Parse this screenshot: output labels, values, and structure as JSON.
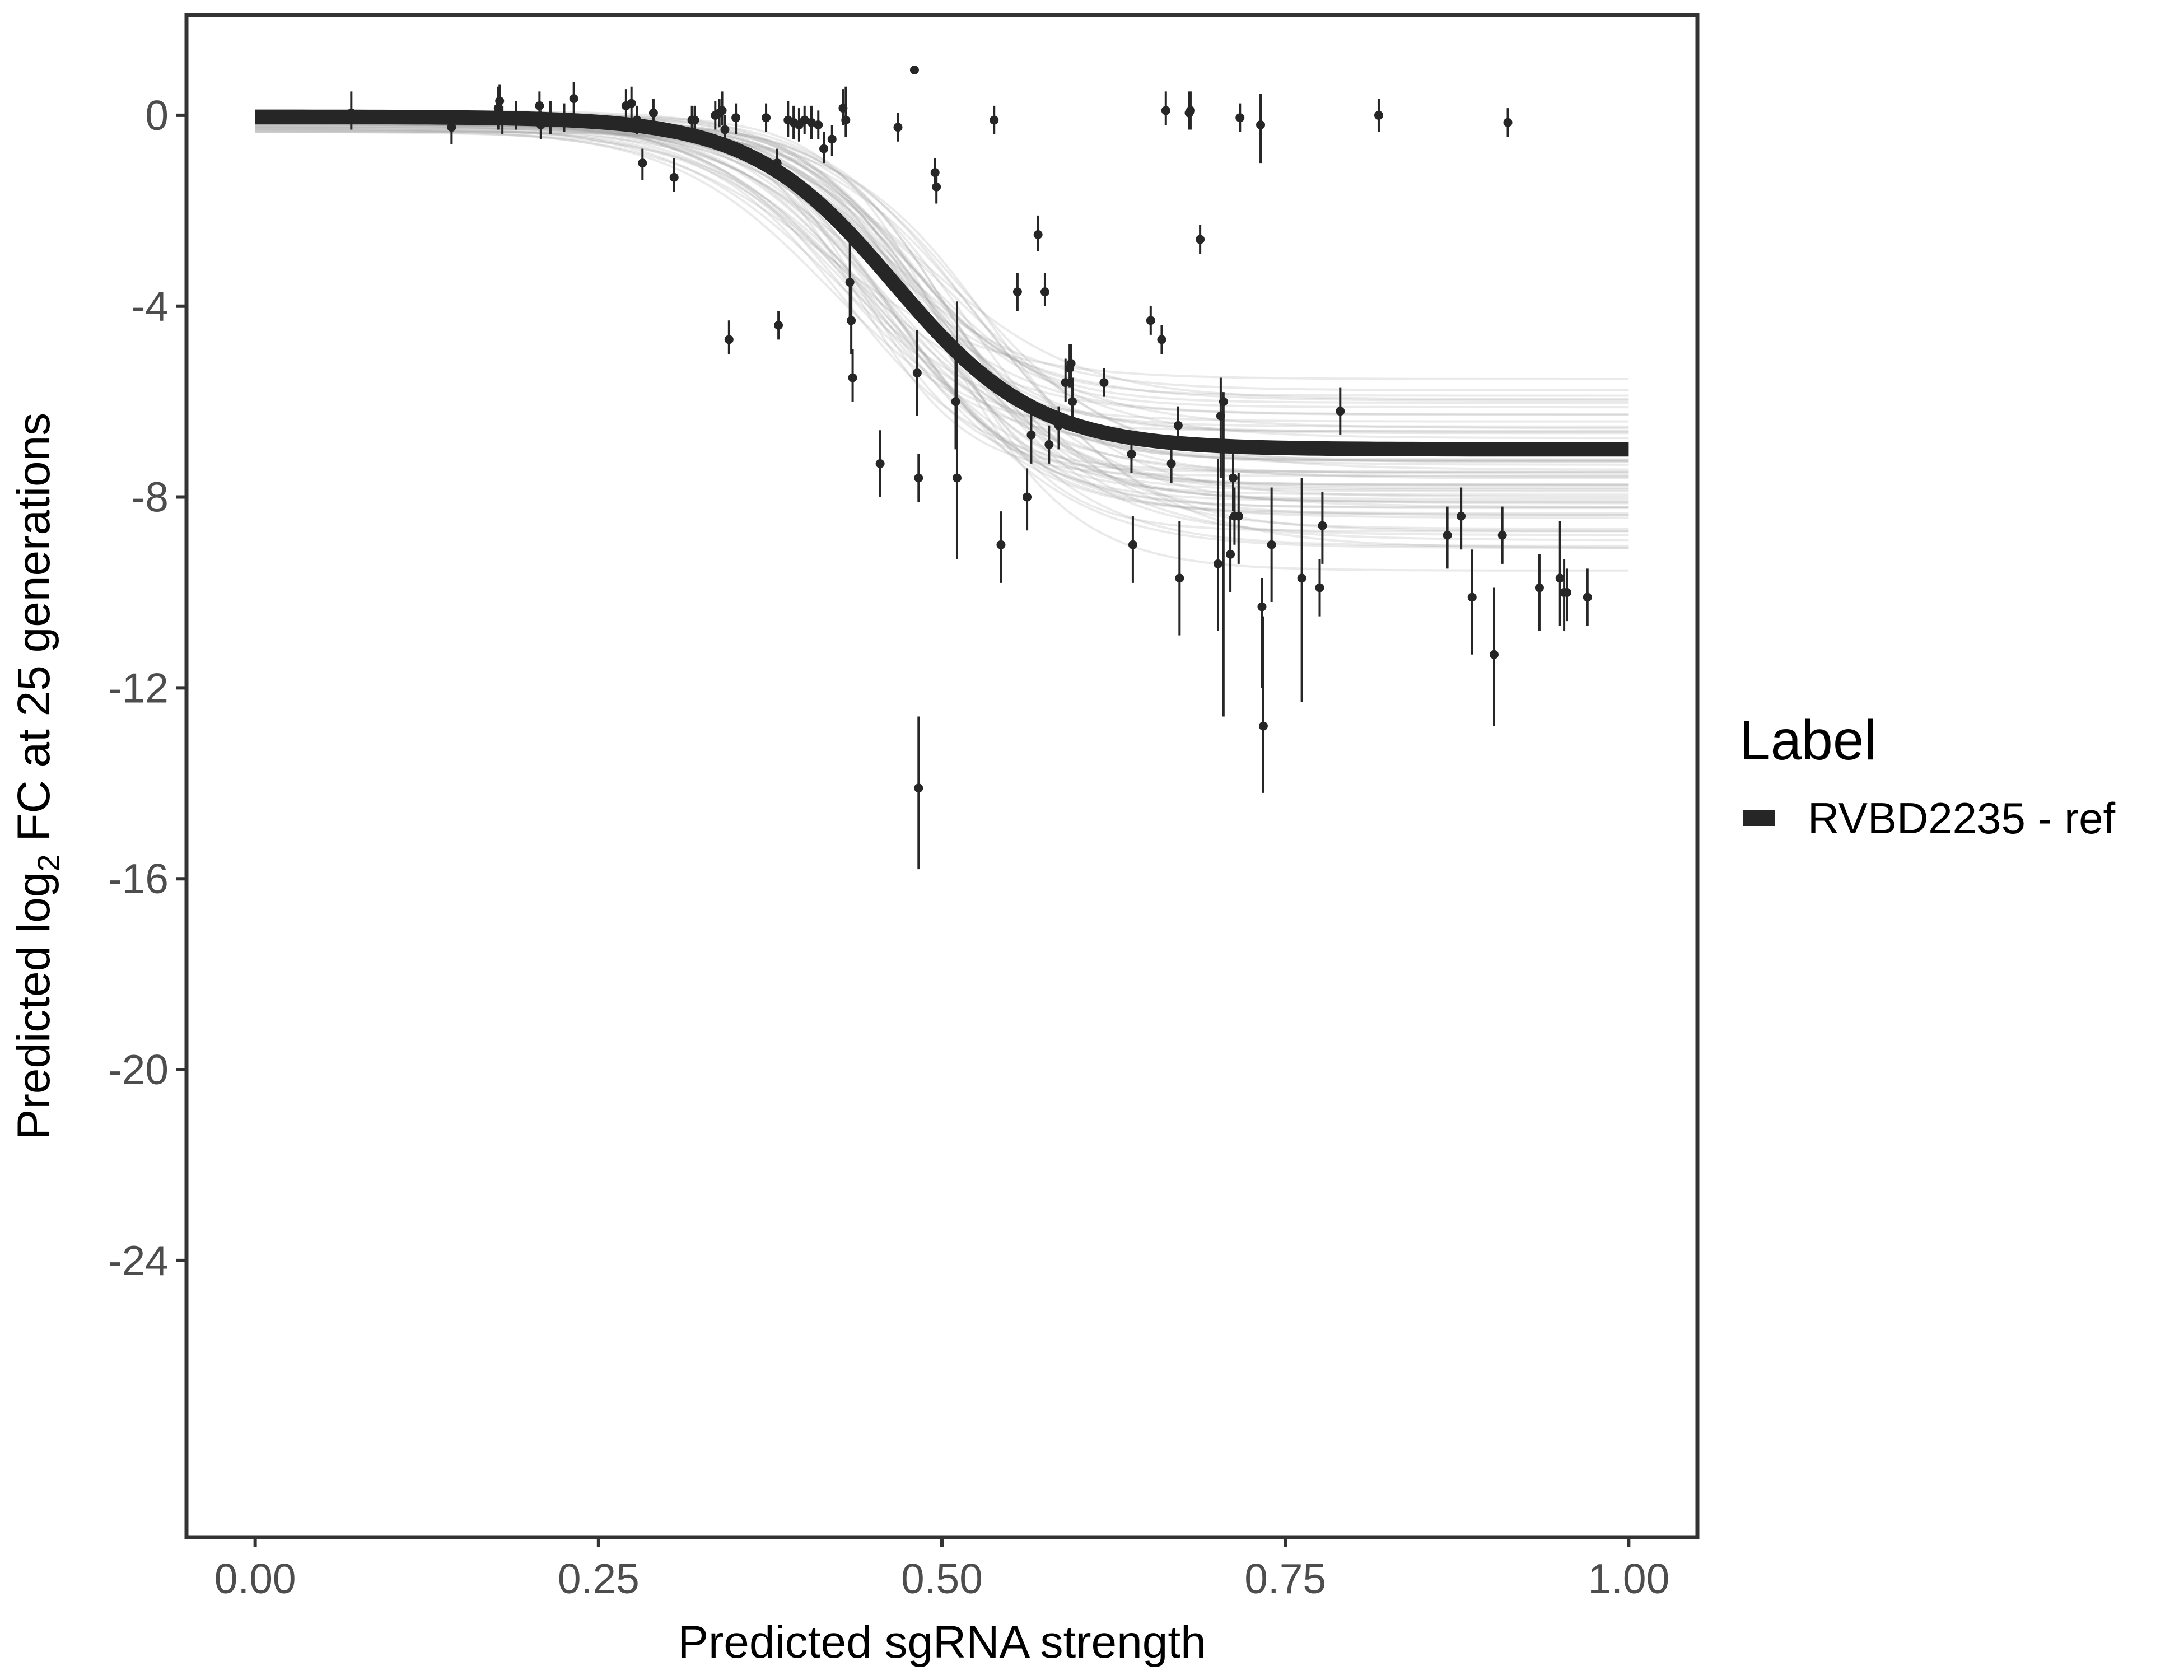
{
  "chart_data": {
    "type": "scatter",
    "xlabel": "Predicted sgRNA strength",
    "ylabel_parts": [
      "Predicted  log",
      "2",
      " FC at 25 generations"
    ],
    "xlim": [
      -0.05,
      1.05
    ],
    "ylim": [
      -29.8,
      2.1
    ],
    "x_ticks": [
      0.0,
      0.25,
      0.5,
      0.75,
      1.0
    ],
    "x_tick_labels": [
      "0.00",
      "0.25",
      "0.50",
      "0.75",
      "1.00"
    ],
    "y_ticks": [
      0,
      -4,
      -8,
      -12,
      -16,
      -20,
      -24
    ],
    "y_tick_labels": [
      "0",
      "-4",
      "-8",
      "-12",
      "-16",
      "-20",
      "-24"
    ],
    "grid": false,
    "legend": {
      "title": "Label",
      "position": "right",
      "entries": [
        {
          "name": "RVBD2235 - ref",
          "color": "#262626"
        }
      ]
    },
    "fit_curve": {
      "name": "RVBD2235 - ref",
      "color": "#262626",
      "model": "logistic",
      "upper": -0.03,
      "lower": -7.0,
      "midpoint": 0.465,
      "scale": 0.052
    },
    "posterior_band": {
      "color": "#9e9e9e",
      "draws": 60,
      "upper_range": [
        -0.35,
        0.1
      ],
      "lower_range": [
        -9.6,
        -5.3
      ],
      "midpoint_range": [
        0.41,
        0.54
      ],
      "scale_range": [
        0.04,
        0.065
      ]
    },
    "points": [
      {
        "x": 0.07,
        "y": 0.05,
        "lo": -0.3,
        "hi": 0.5
      },
      {
        "x": 0.143,
        "y": -0.25,
        "lo": -0.6,
        "hi": 0.1
      },
      {
        "x": 0.177,
        "y": 0.15,
        "lo": -0.3,
        "hi": 0.6
      },
      {
        "x": 0.178,
        "y": 0.3,
        "lo": -0.1,
        "hi": 0.65
      },
      {
        "x": 0.18,
        "y": -0.1,
        "lo": -0.4,
        "hi": 0.2
      },
      {
        "x": 0.19,
        "y": 0.0,
        "lo": -0.3,
        "hi": 0.3
      },
      {
        "x": 0.207,
        "y": 0.2,
        "lo": -0.1,
        "hi": 0.5
      },
      {
        "x": 0.208,
        "y": -0.2,
        "lo": -0.5,
        "hi": 0.1
      },
      {
        "x": 0.215,
        "y": -0.05,
        "lo": -0.4,
        "hi": 0.3
      },
      {
        "x": 0.225,
        "y": -0.05,
        "lo": -0.35,
        "hi": 0.25
      },
      {
        "x": 0.232,
        "y": 0.35,
        "lo": 0.0,
        "hi": 0.7
      },
      {
        "x": 0.27,
        "y": 0.2,
        "lo": -0.1,
        "hi": 0.55
      },
      {
        "x": 0.274,
        "y": 0.25,
        "lo": -0.1,
        "hi": 0.6
      },
      {
        "x": 0.278,
        "y": -0.1,
        "lo": -0.4,
        "hi": 0.2
      },
      {
        "x": 0.282,
        "y": -1.0,
        "lo": -1.35,
        "hi": -0.7
      },
      {
        "x": 0.29,
        "y": 0.05,
        "lo": -0.3,
        "hi": 0.35
      },
      {
        "x": 0.305,
        "y": -1.3,
        "lo": -1.6,
        "hi": -0.9
      },
      {
        "x": 0.318,
        "y": -0.1,
        "lo": -0.4,
        "hi": 0.2
      },
      {
        "x": 0.32,
        "y": -0.1,
        "lo": -0.5,
        "hi": 0.2
      },
      {
        "x": 0.335,
        "y": 0.0,
        "lo": -0.3,
        "hi": 0.3
      },
      {
        "x": 0.338,
        "y": 0.05,
        "lo": -0.25,
        "hi": 0.35
      },
      {
        "x": 0.34,
        "y": 0.1,
        "lo": -0.2,
        "hi": 0.5
      },
      {
        "x": 0.342,
        "y": -0.3,
        "lo": -0.6,
        "hi": 0.0
      },
      {
        "x": 0.345,
        "y": -4.7,
        "lo": -5.0,
        "hi": -4.3
      },
      {
        "x": 0.35,
        "y": -0.05,
        "lo": -0.4,
        "hi": 0.25
      },
      {
        "x": 0.372,
        "y": -0.05,
        "lo": -0.35,
        "hi": 0.25
      },
      {
        "x": 0.38,
        "y": -1.0,
        "lo": -1.3,
        "hi": -0.7
      },
      {
        "x": 0.381,
        "y": -4.4,
        "lo": -4.7,
        "hi": -4.1
      },
      {
        "x": 0.388,
        "y": -0.1,
        "lo": -0.45,
        "hi": 0.3
      },
      {
        "x": 0.392,
        "y": -0.15,
        "lo": -0.5,
        "hi": 0.2
      },
      {
        "x": 0.396,
        "y": -0.2,
        "lo": -0.55,
        "hi": 0.15
      },
      {
        "x": 0.4,
        "y": -0.1,
        "lo": -0.4,
        "hi": 0.2
      },
      {
        "x": 0.405,
        "y": -0.15,
        "lo": -0.5,
        "hi": 0.2
      },
      {
        "x": 0.41,
        "y": -0.2,
        "lo": -0.5,
        "hi": 0.1
      },
      {
        "x": 0.414,
        "y": -0.7,
        "lo": -1.0,
        "hi": -0.35
      },
      {
        "x": 0.42,
        "y": -0.5,
        "lo": -0.85,
        "hi": -0.2
      },
      {
        "x": 0.428,
        "y": 0.15,
        "lo": -0.2,
        "hi": 0.55
      },
      {
        "x": 0.43,
        "y": -0.1,
        "lo": -0.45,
        "hi": 0.6
      },
      {
        "x": 0.433,
        "y": -3.5,
        "lo": -4.4,
        "hi": -2.6
      },
      {
        "x": 0.434,
        "y": -4.3,
        "lo": -5.0,
        "hi": -3.5
      },
      {
        "x": 0.435,
        "y": -5.5,
        "lo": -6.0,
        "hi": -4.9
      },
      {
        "x": 0.455,
        "y": -7.3,
        "lo": -8.0,
        "hi": -6.6
      },
      {
        "x": 0.468,
        "y": -0.25,
        "lo": -0.55,
        "hi": 0.05
      },
      {
        "x": 0.48,
        "y": 0.95,
        "lo": 0.9,
        "hi": 1.0
      },
      {
        "x": 0.482,
        "y": -5.4,
        "lo": -6.3,
        "hi": -4.5
      },
      {
        "x": 0.483,
        "y": -7.6,
        "lo": -8.1,
        "hi": -7.1
      },
      {
        "x": 0.483,
        "y": -14.1,
        "lo": -15.8,
        "hi": -12.6
      },
      {
        "x": 0.495,
        "y": -1.2,
        "lo": -1.5,
        "hi": -0.9
      },
      {
        "x": 0.496,
        "y": -1.5,
        "lo": -1.85,
        "hi": -1.15
      },
      {
        "x": 0.51,
        "y": -6.0,
        "lo": -7.0,
        "hi": -4.9
      },
      {
        "x": 0.511,
        "y": -7.6,
        "lo": -9.3,
        "hi": -3.9
      },
      {
        "x": 0.538,
        "y": -0.1,
        "lo": -0.4,
        "hi": 0.2
      },
      {
        "x": 0.543,
        "y": -9.0,
        "lo": -9.8,
        "hi": -8.3
      },
      {
        "x": 0.555,
        "y": -3.7,
        "lo": -4.1,
        "hi": -3.3
      },
      {
        "x": 0.562,
        "y": -8.0,
        "lo": -8.7,
        "hi": -7.4
      },
      {
        "x": 0.565,
        "y": -6.7,
        "lo": -7.3,
        "hi": -6.2
      },
      {
        "x": 0.57,
        "y": -2.5,
        "lo": -2.85,
        "hi": -2.1
      },
      {
        "x": 0.575,
        "y": -3.7,
        "lo": -4.0,
        "hi": -3.3
      },
      {
        "x": 0.578,
        "y": -6.9,
        "lo": -7.3,
        "hi": -6.5
      },
      {
        "x": 0.585,
        "y": -6.5,
        "lo": -7.0,
        "hi": -6.1
      },
      {
        "x": 0.59,
        "y": -5.6,
        "lo": -6.0,
        "hi": -5.1
      },
      {
        "x": 0.593,
        "y": -5.3,
        "lo": -5.7,
        "hi": -4.8
      },
      {
        "x": 0.594,
        "y": -5.2,
        "lo": -5.6,
        "hi": -4.8
      },
      {
        "x": 0.595,
        "y": -6.0,
        "lo": -6.4,
        "hi": -5.5
      },
      {
        "x": 0.618,
        "y": -5.6,
        "lo": -5.9,
        "hi": -5.3
      },
      {
        "x": 0.638,
        "y": -7.1,
        "lo": -7.5,
        "hi": -6.7
      },
      {
        "x": 0.639,
        "y": -9.0,
        "lo": -9.8,
        "hi": -8.4
      },
      {
        "x": 0.652,
        "y": -4.3,
        "lo": -4.6,
        "hi": -4.0
      },
      {
        "x": 0.66,
        "y": -4.7,
        "lo": -5.0,
        "hi": -4.4
      },
      {
        "x": 0.663,
        "y": 0.1,
        "lo": -0.2,
        "hi": 0.5
      },
      {
        "x": 0.667,
        "y": -7.3,
        "lo": -7.7,
        "hi": -6.9
      },
      {
        "x": 0.672,
        "y": -6.5,
        "lo": -6.9,
        "hi": -6.1
      },
      {
        "x": 0.673,
        "y": -9.7,
        "lo": -10.9,
        "hi": -8.5
      },
      {
        "x": 0.68,
        "y": 0.05,
        "lo": -0.3,
        "hi": 0.5
      },
      {
        "x": 0.681,
        "y": 0.1,
        "lo": -0.3,
        "hi": 0.5
      },
      {
        "x": 0.688,
        "y": -2.6,
        "lo": -2.9,
        "hi": -2.3
      },
      {
        "x": 0.701,
        "y": -9.4,
        "lo": -10.8,
        "hi": -7.2
      },
      {
        "x": 0.703,
        "y": -6.3,
        "lo": -7.6,
        "hi": -5.5
      },
      {
        "x": 0.705,
        "y": -6.0,
        "lo": -12.6,
        "hi": -5.8
      },
      {
        "x": 0.71,
        "y": -9.2,
        "lo": -10.0,
        "hi": -8.4
      },
      {
        "x": 0.712,
        "y": -7.6,
        "lo": -8.3,
        "hi": -6.9
      },
      {
        "x": 0.713,
        "y": -8.4,
        "lo": -9.0,
        "hi": -7.8
      },
      {
        "x": 0.716,
        "y": -8.4,
        "lo": -9.4,
        "hi": -7.5
      },
      {
        "x": 0.717,
        "y": -0.05,
        "lo": -0.35,
        "hi": 0.25
      },
      {
        "x": 0.732,
        "y": -0.2,
        "lo": -1.0,
        "hi": 0.45
      },
      {
        "x": 0.733,
        "y": -10.3,
        "lo": -12.0,
        "hi": -9.7
      },
      {
        "x": 0.734,
        "y": -12.8,
        "lo": -14.2,
        "hi": -10.5
      },
      {
        "x": 0.74,
        "y": -9.0,
        "lo": -10.2,
        "hi": -7.8
      },
      {
        "x": 0.762,
        "y": -9.7,
        "lo": -12.3,
        "hi": -7.6
      },
      {
        "x": 0.775,
        "y": -9.9,
        "lo": -10.5,
        "hi": -9.3
      },
      {
        "x": 0.777,
        "y": -8.6,
        "lo": -9.4,
        "hi": -7.9
      },
      {
        "x": 0.79,
        "y": -6.2,
        "lo": -6.7,
        "hi": -5.7
      },
      {
        "x": 0.818,
        "y": 0.0,
        "lo": -0.35,
        "hi": 0.35
      },
      {
        "x": 0.868,
        "y": -8.8,
        "lo": -9.5,
        "hi": -8.2
      },
      {
        "x": 0.878,
        "y": -8.4,
        "lo": -9.1,
        "hi": -7.8
      },
      {
        "x": 0.886,
        "y": -10.1,
        "lo": -11.3,
        "hi": -9.1
      },
      {
        "x": 0.902,
        "y": -11.3,
        "lo": -12.8,
        "hi": -9.9
      },
      {
        "x": 0.908,
        "y": -8.8,
        "lo": -9.4,
        "hi": -8.2
      },
      {
        "x": 0.912,
        "y": -0.15,
        "lo": -0.45,
        "hi": 0.15
      },
      {
        "x": 0.935,
        "y": -9.9,
        "lo": -10.8,
        "hi": -9.2
      },
      {
        "x": 0.95,
        "y": -9.7,
        "lo": -10.7,
        "hi": -8.5
      },
      {
        "x": 0.953,
        "y": -10.0,
        "lo": -10.8,
        "hi": -9.3
      },
      {
        "x": 0.955,
        "y": -10.0,
        "lo": -10.6,
        "hi": -9.5
      },
      {
        "x": 0.97,
        "y": -10.1,
        "lo": -10.7,
        "hi": -9.5
      }
    ]
  }
}
